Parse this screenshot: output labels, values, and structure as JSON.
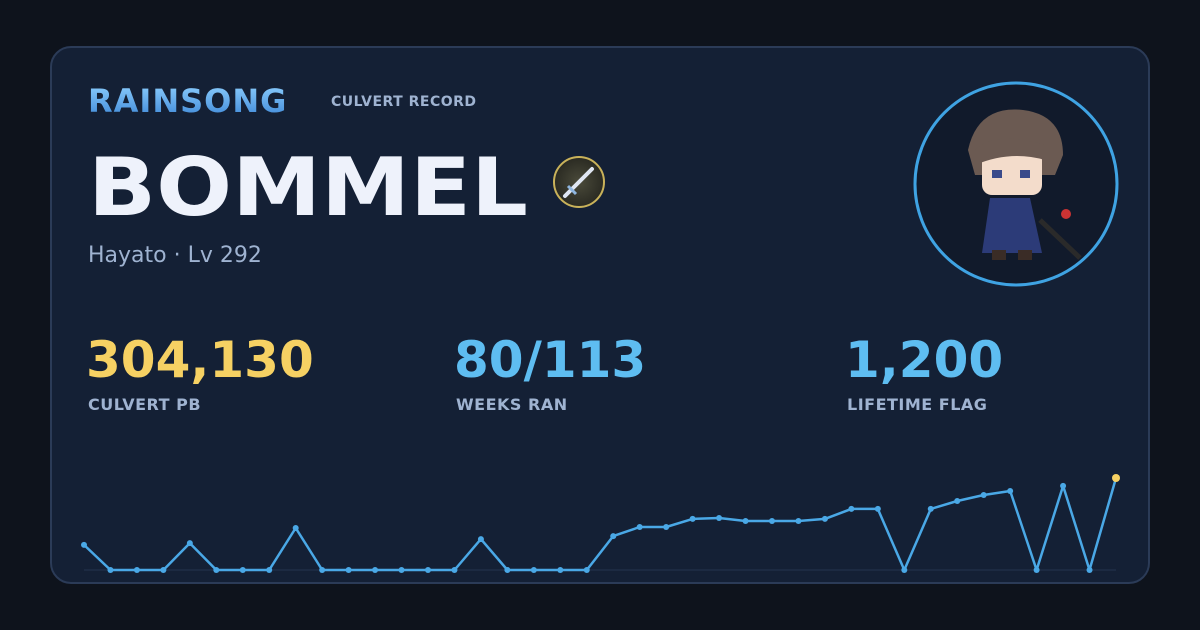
{
  "header": {
    "brand": "RAINSONG",
    "subtitle": "CULVERT RECORD"
  },
  "player": {
    "name": "BOMMEL",
    "details": "Hayato · Lv 292"
  },
  "stats": [
    {
      "value": "304,130",
      "label": "CULVERT PB",
      "color": "#f6d163"
    },
    {
      "value": "80/113",
      "label": "WEEKS RAN",
      "color": "#5ebdf1"
    },
    {
      "value": "1,200",
      "label": "LIFETIME FLAG",
      "color": "#5ebdf1"
    }
  ],
  "sparkline": {
    "type": "line",
    "color": "#4aa8e6",
    "highlight_color": "#f6d163",
    "values": [
      83000,
      0,
      0,
      0,
      89000,
      0,
      0,
      0,
      139000,
      0,
      0,
      0,
      0,
      0,
      0,
      102000,
      0,
      0,
      0,
      0,
      112000,
      142000,
      142000,
      169000,
      172000,
      162000,
      162000,
      162000,
      169000,
      202000,
      202000,
      0,
      202000,
      228000,
      248000,
      261000,
      0,
      278000,
      0,
      304130
    ]
  }
}
